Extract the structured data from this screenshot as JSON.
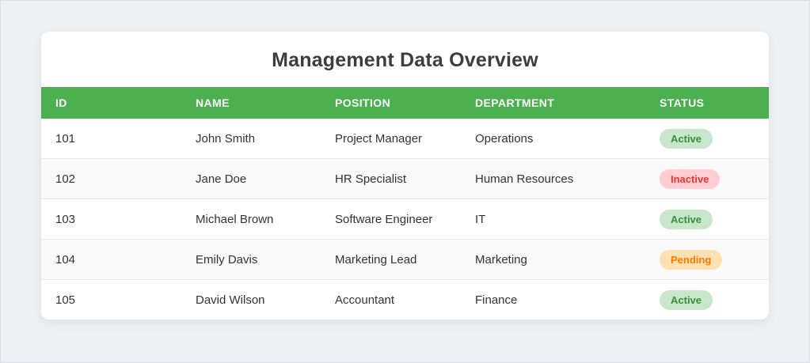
{
  "card": {
    "title": "Management Data Overview"
  },
  "table": {
    "columns": [
      "ID",
      "NAME",
      "POSITION",
      "DEPARTMENT",
      "STATUS"
    ],
    "rows": [
      {
        "id": "101",
        "name": "John Smith",
        "position": "Project Manager",
        "department": "Operations",
        "status": "Active",
        "status_key": "active"
      },
      {
        "id": "102",
        "name": "Jane Doe",
        "position": "HR Specialist",
        "department": "Human Resources",
        "status": "Inactive",
        "status_key": "inactive"
      },
      {
        "id": "103",
        "name": "Michael Brown",
        "position": "Software Engineer",
        "department": "IT",
        "status": "Active",
        "status_key": "active"
      },
      {
        "id": "104",
        "name": "Emily Davis",
        "position": "Marketing Lead",
        "department": "Marketing",
        "status": "Pending",
        "status_key": "pending"
      },
      {
        "id": "105",
        "name": "David Wilson",
        "position": "Accountant",
        "department": "Finance",
        "status": "Active",
        "status_key": "active"
      }
    ]
  },
  "colors": {
    "page_background": "#eef0f4",
    "header_green": "#4caf50",
    "active_bg": "#c8e6c9",
    "active_text": "#388e3c",
    "inactive_bg": "#ffcdd2",
    "inactive_text": "#e53935",
    "pending_bg": "#ffe0b2",
    "pending_text": "#f57c00"
  }
}
